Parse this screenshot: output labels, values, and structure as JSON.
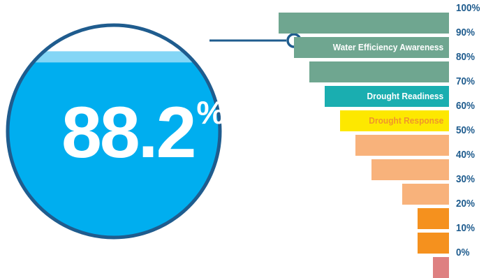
{
  "chart_data": {
    "type": "bar",
    "big_value": "88.2",
    "big_unit": "%",
    "gauge_fill": 88.2,
    "y_ticks": [
      "100%",
      "90%",
      "80%",
      "70%",
      "60%",
      "50%",
      "40%",
      "30%",
      "20%",
      "10%",
      "0%"
    ],
    "ylim": [
      0,
      100
    ],
    "bars": [
      {
        "label": "",
        "color": "#6fa690",
        "text_color": "#ffffff"
      },
      {
        "label": "Water Efficiency Awareness",
        "color": "#6fa690",
        "text_color": "#ffffff"
      },
      {
        "label": "",
        "color": "#6fa690",
        "text_color": "#ffffff"
      },
      {
        "label": "Drought Readiness",
        "color": "#1aaeb0",
        "text_color": "#ffffff"
      },
      {
        "label": "Drought Response",
        "color": "#fde800",
        "text_color": "#f0962a"
      },
      {
        "label": "",
        "color": "#f8b27b",
        "text_color": "#ffffff"
      },
      {
        "label": "",
        "color": "#f8b27b",
        "text_color": "#ffffff"
      },
      {
        "label": "",
        "color": "#f8b27b",
        "text_color": "#ffffff"
      },
      {
        "label": "",
        "color": "#f5911e",
        "text_color": "#ffffff"
      },
      {
        "label": "",
        "color": "#f5911e",
        "text_color": "#ffffff"
      },
      {
        "label": "",
        "color": "#de8081",
        "text_color": "#ffffff"
      }
    ],
    "colors": {
      "water": "#00aeef",
      "water_surface": "#84d6f6",
      "outline": "#1f5c8e"
    }
  }
}
